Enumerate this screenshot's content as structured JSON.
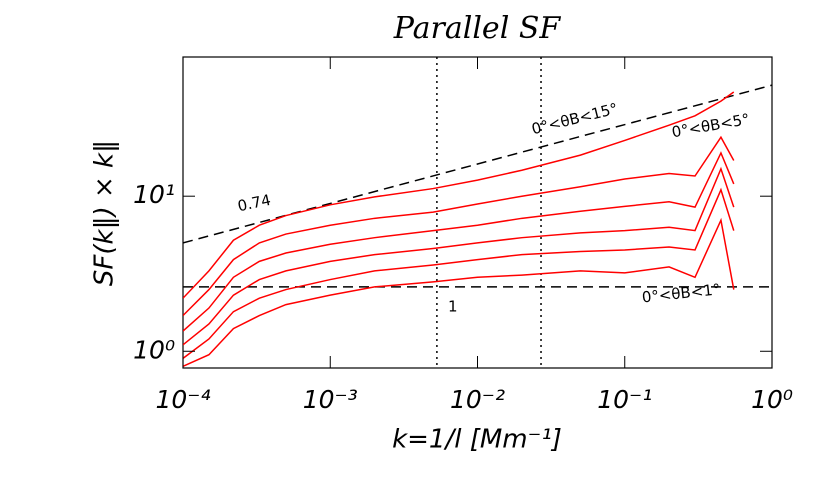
{
  "chart_data": {
    "type": "line",
    "title": "Parallel SF",
    "x_label": "k=1/l [Mm⁻¹]",
    "y_label": "SF(k‖) × k‖",
    "log_x": true,
    "log_y": true,
    "xlim": [
      0.0001,
      1
    ],
    "ylim": [
      0.78,
      79
    ],
    "xticks": [
      {
        "value": 0.0001,
        "label": "10⁻⁴"
      },
      {
        "value": 0.001,
        "label": "10⁻³"
      },
      {
        "value": 0.01,
        "label": "10⁻²"
      },
      {
        "value": 0.1,
        "label": "10⁻¹"
      },
      {
        "value": 1,
        "label": "10⁰"
      }
    ],
    "yticks": [
      {
        "value": 1,
        "label": "10⁰"
      },
      {
        "value": 10,
        "label": "10¹"
      }
    ],
    "x": [
      0.0001,
      0.00015,
      0.00022,
      0.00033,
      0.0005,
      0.001,
      0.002,
      0.005,
      0.01,
      0.02,
      0.05,
      0.1,
      0.2,
      0.3,
      0.45,
      0.55
    ],
    "series": [
      {
        "name": "0°<θB<15°",
        "color": "#ff0000",
        "values": [
          2.2,
          3.3,
          5.2,
          6.5,
          7.5,
          8.8,
          9.9,
          11.2,
          12.7,
          14.7,
          18.4,
          22.9,
          28.7,
          33,
          41,
          47
        ]
      },
      {
        "name": "0°<θB<5°",
        "color": "#ff0000",
        "values": [
          1.7,
          2.5,
          3.9,
          5.0,
          5.7,
          6.5,
          7.2,
          7.9,
          8.9,
          10.0,
          11.5,
          12.9,
          14.0,
          13.5,
          24,
          17
        ]
      },
      {
        "color": "#ff0000",
        "values": [
          1.35,
          1.9,
          3.0,
          3.8,
          4.3,
          4.9,
          5.4,
          6.0,
          6.5,
          7.2,
          8.0,
          8.6,
          9.2,
          8.5,
          19,
          12
        ]
      },
      {
        "color": "#ff0000",
        "values": [
          1.1,
          1.5,
          2.3,
          2.9,
          3.3,
          3.8,
          4.2,
          4.6,
          5.0,
          5.4,
          5.8,
          6.0,
          6.3,
          6.0,
          15,
          8.5
        ]
      },
      {
        "color": "#ff0000",
        "values": [
          0.9,
          1.2,
          1.8,
          2.2,
          2.5,
          2.9,
          3.3,
          3.6,
          3.9,
          4.2,
          4.4,
          4.5,
          4.7,
          4.5,
          11,
          6
        ]
      },
      {
        "name": "0°<θB<1°",
        "color": "#ff0000",
        "values": [
          0.8,
          0.95,
          1.4,
          1.7,
          2.0,
          2.3,
          2.6,
          2.8,
          3.0,
          3.1,
          3.3,
          3.2,
          3.5,
          3.0,
          7,
          2.5
        ]
      }
    ],
    "reference_lines": [
      {
        "label": "0.74",
        "x": [
          0.0001,
          1
        ],
        "values": [
          5.0,
          52
        ]
      },
      {
        "label": "1",
        "x": [
          0.0001,
          1
        ],
        "values": [
          2.6,
          2.6
        ]
      }
    ],
    "vertical_lines": [
      0.0053,
      0.027
    ]
  }
}
